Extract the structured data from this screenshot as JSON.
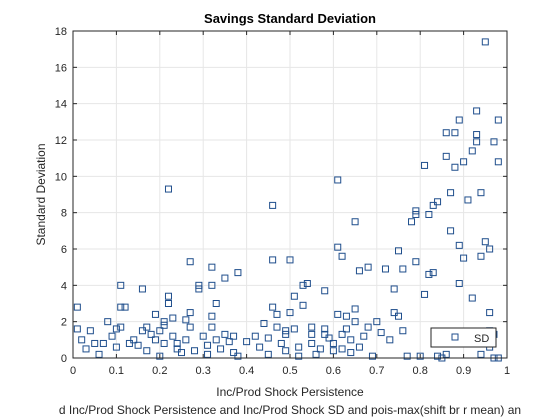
{
  "chart_data": {
    "type": "scatter",
    "title": "Savings Standard Deviation",
    "xlabel": "Inc/Prod Shock Persistence",
    "ylabel": "Standard Deviation",
    "caption": "d Inc/Prod Shock Persistence and Inc/Prod Shock SD and pois-max(shift br r mean) an",
    "xlim": [
      0,
      1
    ],
    "ylim": [
      0,
      18
    ],
    "xticks": [
      0,
      0.1,
      0.2,
      0.3,
      0.4,
      0.5,
      0.6,
      0.7,
      0.8,
      0.9,
      1
    ],
    "xtick_labels": [
      "0",
      "0.1",
      "0.2",
      "0.3",
      "0.4",
      "0.5",
      "0.6",
      "0.7",
      "0.8",
      "0.9",
      "1"
    ],
    "yticks": [
      0,
      2,
      4,
      6,
      8,
      10,
      12,
      14,
      16,
      18
    ],
    "ytick_labels": [
      "0",
      "2",
      "4",
      "6",
      "8",
      "10",
      "12",
      "14",
      "16",
      "18"
    ],
    "grid": true,
    "legend": {
      "position": "bottom-right",
      "entries": [
        "SD"
      ]
    },
    "marker": "square",
    "color": "#1f4e8c",
    "series": [
      {
        "name": "SD",
        "points": [
          [
            0.01,
            2.8
          ],
          [
            0.01,
            1.6
          ],
          [
            0.02,
            1.0
          ],
          [
            0.03,
            0.5
          ],
          [
            0.04,
            1.5
          ],
          [
            0.05,
            0.8
          ],
          [
            0.06,
            0.2
          ],
          [
            0.07,
            0.8
          ],
          [
            0.08,
            2.0
          ],
          [
            0.09,
            1.2
          ],
          [
            0.1,
            1.6
          ],
          [
            0.1,
            0.6
          ],
          [
            0.11,
            1.7
          ],
          [
            0.11,
            2.8
          ],
          [
            0.11,
            4.0
          ],
          [
            0.12,
            2.8
          ],
          [
            0.13,
            0.8
          ],
          [
            0.14,
            1.0
          ],
          [
            0.15,
            0.7
          ],
          [
            0.16,
            3.8
          ],
          [
            0.16,
            1.5
          ],
          [
            0.17,
            1.7
          ],
          [
            0.17,
            0.4
          ],
          [
            0.18,
            1.3
          ],
          [
            0.19,
            2.4
          ],
          [
            0.19,
            1.0
          ],
          [
            0.2,
            0.1
          ],
          [
            0.2,
            1.5
          ],
          [
            0.21,
            1.8
          ],
          [
            0.21,
            0.8
          ],
          [
            0.21,
            2.0
          ],
          [
            0.22,
            3.0
          ],
          [
            0.22,
            9.3
          ],
          [
            0.22,
            3.4
          ],
          [
            0.23,
            2.2
          ],
          [
            0.23,
            1.2
          ],
          [
            0.24,
            0.8
          ],
          [
            0.24,
            0.5
          ],
          [
            0.25,
            0.3
          ],
          [
            0.26,
            1.0
          ],
          [
            0.26,
            2.1
          ],
          [
            0.27,
            5.3
          ],
          [
            0.27,
            2.5
          ],
          [
            0.27,
            1.7
          ],
          [
            0.28,
            0.4
          ],
          [
            0.29,
            4.0
          ],
          [
            0.29,
            3.8
          ],
          [
            0.3,
            1.2
          ],
          [
            0.31,
            0.2
          ],
          [
            0.31,
            0.7
          ],
          [
            0.32,
            5.0
          ],
          [
            0.32,
            4.0
          ],
          [
            0.32,
            2.3
          ],
          [
            0.32,
            1.7
          ],
          [
            0.33,
            1.0
          ],
          [
            0.33,
            3.0
          ],
          [
            0.34,
            0.5
          ],
          [
            0.35,
            4.4
          ],
          [
            0.35,
            1.3
          ],
          [
            0.36,
            0.9
          ],
          [
            0.37,
            1.2
          ],
          [
            0.37,
            0.3
          ],
          [
            0.38,
            4.7
          ],
          [
            0.38,
            0.1
          ],
          [
            0.4,
            0.9
          ],
          [
            0.42,
            1.2
          ],
          [
            0.43,
            0.6
          ],
          [
            0.44,
            1.9
          ],
          [
            0.45,
            0.2
          ],
          [
            0.45,
            1.1
          ],
          [
            0.46,
            5.4
          ],
          [
            0.46,
            8.4
          ],
          [
            0.46,
            2.8
          ],
          [
            0.47,
            1.7
          ],
          [
            0.47,
            2.4
          ],
          [
            0.48,
            0.8
          ],
          [
            0.49,
            1.5
          ],
          [
            0.49,
            1.3
          ],
          [
            0.49,
            0.4
          ],
          [
            0.5,
            5.4
          ],
          [
            0.5,
            2.5
          ],
          [
            0.51,
            1.6
          ],
          [
            0.51,
            3.4
          ],
          [
            0.52,
            0.6
          ],
          [
            0.52,
            0.1
          ],
          [
            0.53,
            2.9
          ],
          [
            0.53,
            4.0
          ],
          [
            0.54,
            4.1
          ],
          [
            0.55,
            1.7
          ],
          [
            0.55,
            0.8
          ],
          [
            0.55,
            1.3
          ],
          [
            0.56,
            0.2
          ],
          [
            0.57,
            0.5
          ],
          [
            0.58,
            1.6
          ],
          [
            0.58,
            3.7
          ],
          [
            0.58,
            1.3
          ],
          [
            0.59,
            1.1
          ],
          [
            0.6,
            0.8
          ],
          [
            0.6,
            0.4
          ],
          [
            0.61,
            9.8
          ],
          [
            0.61,
            6.1
          ],
          [
            0.61,
            2.4
          ],
          [
            0.62,
            5.6
          ],
          [
            0.62,
            1.3
          ],
          [
            0.62,
            0.5
          ],
          [
            0.63,
            1.6
          ],
          [
            0.63,
            2.3
          ],
          [
            0.64,
            0.3
          ],
          [
            0.64,
            1.0
          ],
          [
            0.65,
            2.7
          ],
          [
            0.65,
            7.5
          ],
          [
            0.65,
            2.0
          ],
          [
            0.66,
            4.8
          ],
          [
            0.66,
            0.6
          ],
          [
            0.67,
            1.2
          ],
          [
            0.68,
            5.0
          ],
          [
            0.68,
            1.7
          ],
          [
            0.69,
            0.1
          ],
          [
            0.7,
            2.0
          ],
          [
            0.71,
            1.4
          ],
          [
            0.72,
            4.9
          ],
          [
            0.73,
            1.0
          ],
          [
            0.74,
            3.8
          ],
          [
            0.74,
            2.5
          ],
          [
            0.75,
            5.9
          ],
          [
            0.75,
            2.3
          ],
          [
            0.76,
            4.9
          ],
          [
            0.76,
            1.5
          ],
          [
            0.77,
            0.1
          ],
          [
            0.78,
            7.5
          ],
          [
            0.79,
            7.9
          ],
          [
            0.79,
            8.1
          ],
          [
            0.79,
            5.3
          ],
          [
            0.8,
            0.1
          ],
          [
            0.81,
            10.6
          ],
          [
            0.81,
            3.5
          ],
          [
            0.82,
            4.6
          ],
          [
            0.82,
            7.9
          ],
          [
            0.83,
            4.7
          ],
          [
            0.83,
            8.4
          ],
          [
            0.84,
            8.6
          ],
          [
            0.84,
            0.1
          ],
          [
            0.85,
            0.0
          ],
          [
            0.86,
            11.1
          ],
          [
            0.86,
            12.4
          ],
          [
            0.87,
            1.1
          ],
          [
            0.87,
            7.0
          ],
          [
            0.87,
            9.1
          ],
          [
            0.88,
            12.4
          ],
          [
            0.88,
            10.5
          ],
          [
            0.89,
            6.2
          ],
          [
            0.89,
            4.1
          ],
          [
            0.89,
            13.1
          ],
          [
            0.9,
            10.8
          ],
          [
            0.9,
            5.5
          ],
          [
            0.91,
            8.7
          ],
          [
            0.92,
            11.4
          ],
          [
            0.92,
            3.3
          ],
          [
            0.93,
            13.6
          ],
          [
            0.93,
            11.9
          ],
          [
            0.93,
            12.3
          ],
          [
            0.94,
            9.1
          ],
          [
            0.94,
            5.6
          ],
          [
            0.95,
            17.4
          ],
          [
            0.95,
            6.4
          ],
          [
            0.96,
            1.5
          ],
          [
            0.96,
            2.5
          ],
          [
            0.96,
            6.0
          ],
          [
            0.96,
            0.6
          ],
          [
            0.97,
            11.9
          ],
          [
            0.97,
            1.3
          ],
          [
            0.97,
            0.0
          ],
          [
            0.98,
            13.1
          ],
          [
            0.98,
            10.8
          ],
          [
            0.98,
            0.0
          ],
          [
            0.94,
            0.2
          ],
          [
            0.85,
            1.0
          ],
          [
            0.86,
            0.2
          ]
        ]
      }
    ]
  }
}
